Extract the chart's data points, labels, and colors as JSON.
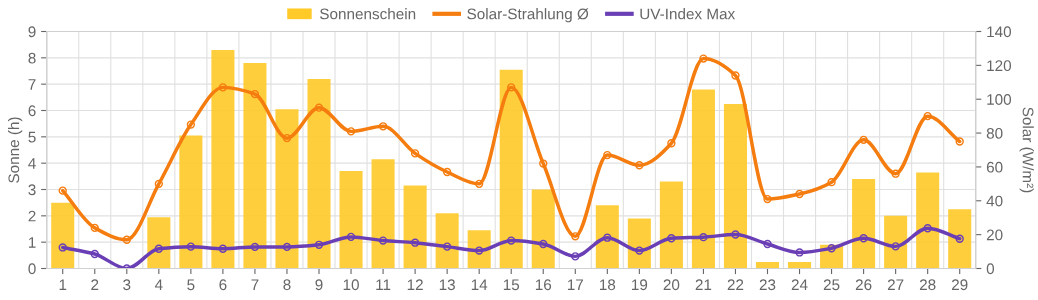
{
  "chart_data": {
    "type": "bar",
    "categories": [
      "1",
      "2",
      "3",
      "4",
      "5",
      "6",
      "7",
      "8",
      "9",
      "10",
      "11",
      "12",
      "13",
      "14",
      "15",
      "16",
      "17",
      "18",
      "19",
      "20",
      "21",
      "22",
      "23",
      "24",
      "25",
      "26",
      "27",
      "28",
      "29"
    ],
    "series": [
      {
        "name": "Sonnenschein",
        "color": "#ffc928",
        "values": [
          2.5,
          0,
          0,
          1.95,
          5.05,
          8.3,
          7.8,
          6.05,
          7.2,
          3.7,
          4.15,
          3.15,
          2.1,
          1.45,
          7.55,
          3.0,
          0,
          2.4,
          1.9,
          3.3,
          6.8,
          6.25,
          0.25,
          0.25,
          0.9,
          3.4,
          2.0,
          3.65,
          2.25
        ]
      },
      {
        "name": "Solar-Strahlung Ø",
        "type": "line",
        "axis": "y2",
        "color": "#f57c0f",
        "marker": "circle",
        "values": [
          46,
          24,
          17,
          50,
          85,
          107,
          103,
          77,
          95,
          81,
          84,
          68,
          57,
          50,
          107,
          62,
          19,
          67,
          61,
          74,
          124,
          114,
          41,
          44,
          51,
          76,
          56,
          90,
          75
        ]
      },
      {
        "name": "UV-Index Max",
        "type": "line",
        "color": "#6a3fb5",
        "marker": "circle",
        "values": [
          0.8,
          0.55,
          0.0,
          0.75,
          0.83,
          0.75,
          0.82,
          0.82,
          0.9,
          1.2,
          1.06,
          0.98,
          0.83,
          0.68,
          1.06,
          0.93,
          0.46,
          1.17,
          0.68,
          1.15,
          1.19,
          1.29,
          0.93,
          0.61,
          0.77,
          1.15,
          0.84,
          1.53,
          1.13
        ]
      }
    ],
    "ylabel": "Sonne (h)",
    "y2label": "Solar (W/m²)",
    "ylim": [
      0,
      9
    ],
    "yticks": [
      0,
      1,
      2,
      3,
      4,
      5,
      6,
      7,
      8,
      9
    ],
    "y2lim": [
      0,
      140
    ],
    "y2ticks": [
      0,
      20,
      40,
      60,
      80,
      100,
      120,
      140
    ],
    "grid": true,
    "legend": "top"
  }
}
